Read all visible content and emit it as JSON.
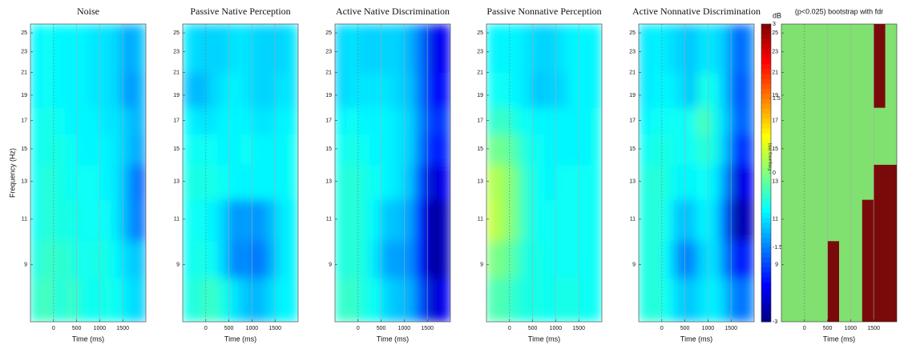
{
  "chart_data": [
    {
      "type": "heatmap",
      "title": "Noise",
      "xlabel": "Time (ms)",
      "ylabel": "Frequency (Hz)",
      "xlim": [
        -500,
        2000
      ],
      "ylim": [
        7,
        26
      ],
      "ylog": true,
      "xticks": [
        0,
        500,
        1000,
        1500
      ],
      "yticks": [
        9,
        11,
        13,
        15,
        17,
        19,
        21,
        23,
        25
      ],
      "grid": true,
      "cmap": "jet",
      "zlim": [
        -3,
        3
      ],
      "xbins": [
        -500,
        -250,
        0,
        250,
        500,
        750,
        1000,
        1250,
        1500,
        1750,
        2000
      ],
      "ybins": [
        7,
        8.5,
        10,
        12,
        14,
        16,
        18,
        21,
        26
      ],
      "z": [
        [
          -0.5,
          -0.3,
          -0.6,
          -0.4,
          -0.6,
          -0.7,
          -0.6,
          -0.7,
          -0.9,
          -1.0
        ],
        [
          -0.6,
          -0.4,
          -0.5,
          -0.5,
          -0.7,
          -0.6,
          -0.6,
          -0.8,
          -1.0,
          -1.1
        ],
        [
          -0.7,
          -0.5,
          -0.6,
          -0.6,
          -0.7,
          -0.7,
          -0.7,
          -0.9,
          -1.3,
          -1.6
        ],
        [
          -0.7,
          -0.5,
          -0.6,
          -0.7,
          -0.7,
          -0.7,
          -0.8,
          -0.9,
          -1.3,
          -1.7
        ],
        [
          -0.7,
          -0.6,
          -0.6,
          -0.7,
          -0.8,
          -0.8,
          -0.8,
          -0.9,
          -1.1,
          -1.3
        ],
        [
          -0.7,
          -0.6,
          -0.7,
          -0.8,
          -0.8,
          -0.8,
          -0.9,
          -0.9,
          -1.1,
          -1.2
        ],
        [
          -0.8,
          -0.7,
          -0.8,
          -0.8,
          -0.8,
          -0.9,
          -0.9,
          -1.0,
          -1.4,
          -1.2
        ],
        [
          -0.8,
          -0.7,
          -0.8,
          -0.8,
          -0.8,
          -0.9,
          -0.9,
          -1.0,
          -1.3,
          -1.1
        ]
      ]
    },
    {
      "type": "heatmap",
      "title": "Passive Native Perception",
      "xlabel": "Time (ms)",
      "xlim": [
        -500,
        2000
      ],
      "ylim": [
        7,
        26
      ],
      "ylog": true,
      "xticks": [
        0,
        500,
        1000,
        1500
      ],
      "yticks": [
        9,
        11,
        13,
        15,
        17,
        19,
        21,
        23,
        25
      ],
      "grid": true,
      "cmap": "jet",
      "zlim": [
        -3,
        3
      ],
      "xbins": [
        -500,
        -250,
        0,
        250,
        500,
        750,
        1000,
        1250,
        1500,
        1750,
        2000
      ],
      "ybins": [
        7,
        8.5,
        10,
        12,
        14,
        16,
        18,
        21,
        26
      ],
      "z": [
        [
          -0.6,
          -0.5,
          -0.4,
          -0.6,
          -0.9,
          -1.1,
          -1.2,
          -1.0,
          -0.8,
          -0.8
        ],
        [
          -0.7,
          -0.6,
          -0.7,
          -1.0,
          -1.5,
          -1.4,
          -1.6,
          -1.3,
          -0.9,
          -0.8
        ],
        [
          -0.7,
          -0.7,
          -0.8,
          -1.0,
          -1.4,
          -1.3,
          -1.4,
          -1.2,
          -0.9,
          -0.8
        ],
        [
          -0.6,
          -0.6,
          -0.6,
          -0.7,
          -0.8,
          -0.8,
          -0.8,
          -0.8,
          -0.8,
          -0.7
        ],
        [
          -0.7,
          -0.7,
          -0.7,
          -0.8,
          -0.8,
          -0.7,
          -0.8,
          -0.8,
          -0.8,
          -0.7
        ],
        [
          -0.8,
          -0.9,
          -0.9,
          -0.8,
          -0.8,
          -0.8,
          -0.9,
          -0.9,
          -0.8,
          -0.8
        ],
        [
          -1.1,
          -1.2,
          -1.0,
          -0.9,
          -0.8,
          -0.9,
          -1.0,
          -1.0,
          -0.9,
          -0.9
        ],
        [
          -0.9,
          -1.0,
          -1.0,
          -1.0,
          -0.9,
          -0.9,
          -1.0,
          -1.0,
          -1.0,
          -0.9
        ]
      ]
    },
    {
      "type": "heatmap",
      "title": "Active Native Discrimination",
      "xlabel": "Time (ms)",
      "xlim": [
        -500,
        2000
      ],
      "ylim": [
        7,
        26
      ],
      "ylog": true,
      "xticks": [
        0,
        500,
        1000,
        1500
      ],
      "yticks": [
        9,
        11,
        13,
        15,
        17,
        19,
        21,
        23,
        25
      ],
      "grid": true,
      "cmap": "jet",
      "zlim": [
        -3,
        3
      ],
      "xbins": [
        -500,
        -250,
        0,
        250,
        500,
        750,
        1000,
        1250,
        1500,
        1750,
        2000
      ],
      "ybins": [
        7,
        8.5,
        10,
        12,
        14,
        16,
        18,
        21,
        26
      ],
      "z": [
        [
          -0.5,
          -0.4,
          -0.6,
          -0.7,
          -1.0,
          -1.1,
          -1.2,
          -1.8,
          -2.6,
          -2.3
        ],
        [
          -0.6,
          -0.5,
          -0.6,
          -0.9,
          -1.3,
          -1.3,
          -1.4,
          -2.2,
          -2.9,
          -2.6
        ],
        [
          -0.6,
          -0.5,
          -0.6,
          -0.8,
          -1.1,
          -1.1,
          -1.3,
          -2.2,
          -2.9,
          -2.6
        ],
        [
          -0.6,
          -0.5,
          -0.6,
          -0.7,
          -0.8,
          -0.9,
          -1.1,
          -1.9,
          -2.6,
          -2.3
        ],
        [
          -0.7,
          -0.6,
          -0.7,
          -0.8,
          -0.8,
          -0.9,
          -1.0,
          -1.6,
          -2.2,
          -2.0
        ],
        [
          -0.8,
          -0.7,
          -0.8,
          -0.8,
          -0.8,
          -0.9,
          -1.0,
          -1.5,
          -2.0,
          -1.9
        ],
        [
          -1.0,
          -0.9,
          -0.9,
          -0.9,
          -0.9,
          -1.0,
          -1.1,
          -1.6,
          -2.3,
          -2.2
        ],
        [
          -1.0,
          -0.9,
          -1.0,
          -1.0,
          -1.0,
          -1.0,
          -1.2,
          -1.6,
          -2.4,
          -2.3
        ]
      ]
    },
    {
      "type": "heatmap",
      "title": "Passive Nonnative Perception",
      "xlabel": "Time (ms)",
      "xlim": [
        -500,
        2000
      ],
      "ylim": [
        7,
        26
      ],
      "ylog": true,
      "xticks": [
        0,
        500,
        1000,
        1500
      ],
      "yticks": [
        9,
        11,
        13,
        15,
        17,
        19,
        21,
        23,
        25
      ],
      "grid": true,
      "cmap": "jet",
      "zlim": [
        -3,
        3
      ],
      "xbins": [
        -500,
        -250,
        0,
        250,
        500,
        750,
        1000,
        1250,
        1500,
        1750,
        2000
      ],
      "ybins": [
        7,
        8.5,
        10,
        12,
        14,
        16,
        18,
        21,
        26
      ],
      "z": [
        [
          -0.3,
          -0.3,
          -0.5,
          -0.6,
          -0.6,
          -0.7,
          -0.6,
          -0.6,
          -0.7,
          -0.7
        ],
        [
          0.0,
          -0.1,
          -0.3,
          -0.6,
          -0.6,
          -0.7,
          -0.7,
          -0.7,
          -0.7,
          -0.7
        ],
        [
          0.4,
          0.2,
          -0.1,
          -0.5,
          -0.7,
          -0.7,
          -0.7,
          -0.7,
          -0.7,
          -0.7
        ],
        [
          0.3,
          0.2,
          -0.1,
          -0.5,
          -0.7,
          -0.8,
          -0.7,
          -0.7,
          -0.7,
          -0.7
        ],
        [
          -0.1,
          -0.1,
          -0.3,
          -0.6,
          -0.7,
          -0.8,
          -0.8,
          -0.8,
          -0.8,
          -0.7
        ],
        [
          -0.5,
          -0.4,
          -0.6,
          -0.7,
          -0.8,
          -0.8,
          -0.8,
          -0.8,
          -0.8,
          -0.7
        ],
        [
          -0.7,
          -0.7,
          -0.8,
          -0.9,
          -1.1,
          -1.0,
          -1.0,
          -0.8,
          -0.8,
          -0.8
        ],
        [
          -0.8,
          -0.8,
          -0.8,
          -0.9,
          -1.0,
          -1.0,
          -0.9,
          -0.8,
          -0.8,
          -0.8
        ]
      ]
    },
    {
      "type": "heatmap",
      "title": "Active Nonnative Discrimination",
      "xlabel": "Time (ms)",
      "xlim": [
        -500,
        2000
      ],
      "ylim": [
        7,
        26
      ],
      "ylog": true,
      "xticks": [
        0,
        500,
        1000,
        1500
      ],
      "yticks": [
        9,
        11,
        13,
        15,
        17,
        19,
        21,
        23,
        25
      ],
      "grid": true,
      "cmap": "jet",
      "zlim": [
        -3,
        3
      ],
      "xbins": [
        -500,
        -250,
        0,
        250,
        500,
        750,
        1000,
        1250,
        1500,
        1750,
        2000
      ],
      "ybins": [
        7,
        8.5,
        10,
        12,
        14,
        16,
        18,
        21,
        26
      ],
      "z": [
        [
          -0.6,
          -0.5,
          -0.7,
          -1.0,
          -1.1,
          -0.9,
          -0.8,
          -1.1,
          -1.6,
          -1.5
        ],
        [
          -0.6,
          -0.5,
          -0.8,
          -1.4,
          -1.5,
          -1.0,
          -0.9,
          -1.5,
          -2.3,
          -2.0
        ],
        [
          -0.6,
          -0.5,
          -0.7,
          -1.1,
          -1.1,
          -0.8,
          -0.9,
          -1.7,
          -2.8,
          -2.6
        ],
        [
          -0.6,
          -0.5,
          -0.6,
          -0.8,
          -0.8,
          -0.7,
          -0.8,
          -1.4,
          -2.5,
          -2.3
        ],
        [
          -0.7,
          -0.6,
          -0.6,
          -0.7,
          -0.7,
          -0.5,
          -0.6,
          -1.1,
          -2.0,
          -1.9
        ],
        [
          -0.8,
          -0.7,
          -0.7,
          -0.7,
          -0.7,
          -0.3,
          -0.6,
          -1.0,
          -1.7,
          -1.6
        ],
        [
          -0.9,
          -0.8,
          -0.8,
          -0.9,
          -1.1,
          -0.6,
          -0.7,
          -1.1,
          -1.8,
          -1.6
        ],
        [
          -0.9,
          -0.8,
          -0.9,
          -1.0,
          -1.1,
          -0.9,
          -0.9,
          -1.1,
          -1.7,
          -1.5
        ]
      ]
    },
    {
      "type": "colorbar",
      "label": "dB",
      "inner_label": "Frequency (Hz)",
      "cmap": "jet",
      "ylim": [
        -3,
        3
      ],
      "yticks": [
        3,
        1.5,
        0,
        -1.5,
        -3
      ]
    },
    {
      "type": "mask",
      "title": "(p<0.025) bootstrap with fdr",
      "xlabel": "Time (ms)",
      "xlim": [
        -500,
        2000
      ],
      "ylim": [
        7,
        26
      ],
      "ylog": true,
      "xticks": [
        0,
        500,
        1000,
        1500
      ],
      "yticks": [
        9,
        11,
        13,
        15,
        17,
        19,
        21,
        23,
        25
      ],
      "grid": true,
      "colors": [
        "#80e070",
        "#7a0a0a"
      ],
      "xbins": [
        -500,
        -250,
        0,
        250,
        500,
        750,
        1000,
        1250,
        1500,
        1750,
        2000
      ],
      "ybins": [
        7,
        8.5,
        10,
        12,
        14,
        16,
        18,
        21,
        26
      ],
      "z": [
        [
          0,
          0,
          0,
          0,
          1,
          0,
          0,
          1,
          1,
          1
        ],
        [
          0,
          0,
          0,
          0,
          1,
          0,
          0,
          1,
          1,
          1
        ],
        [
          0,
          0,
          0,
          0,
          0,
          0,
          0,
          1,
          1,
          1
        ],
        [
          0,
          0,
          0,
          0,
          0,
          0,
          0,
          0,
          1,
          1
        ],
        [
          0,
          0,
          0,
          0,
          0,
          0,
          0,
          0,
          0,
          0
        ],
        [
          0,
          0,
          0,
          0,
          0,
          0,
          0,
          0,
          0,
          0
        ],
        [
          0,
          0,
          0,
          0,
          0,
          0,
          0,
          0,
          1,
          0
        ],
        [
          0,
          0,
          0,
          0,
          0,
          0,
          0,
          0,
          1,
          0
        ]
      ]
    }
  ]
}
